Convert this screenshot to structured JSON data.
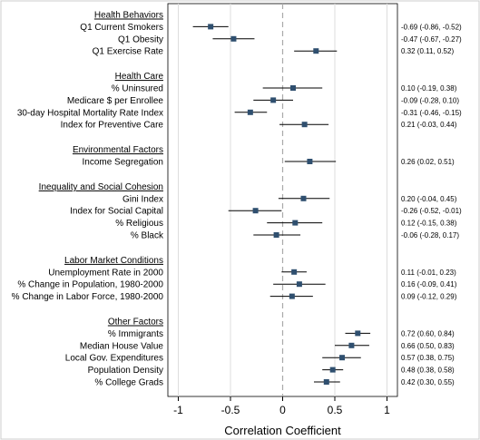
{
  "chart_data": {
    "type": "forest",
    "xlabel": "Correlation Coefficient",
    "xlim": [
      -1.1,
      1.1
    ],
    "xticks": [
      "-1",
      "-0.5",
      "0",
      "0.5",
      "1"
    ],
    "xtick_values": [
      -1,
      -0.5,
      0,
      0.5,
      1
    ],
    "reference_line": 0,
    "grid": "vertical",
    "colors": {
      "point": "#2f4f6f",
      "whisker": "#000000",
      "reference": "#aaaaaa",
      "grid": "#dddddd"
    },
    "groups": [
      {
        "title": "Health Behaviors",
        "rows": [
          {
            "label": "Q1 Current Smokers",
            "estimate": -0.69,
            "lower": -0.86,
            "upper": -0.52,
            "ci_text": "-0.69 (-0.86, -0.52)"
          },
          {
            "label": "Q1 Obesity",
            "estimate": -0.47,
            "lower": -0.67,
            "upper": -0.27,
            "ci_text": "-0.47 (-0.67, -0.27)"
          },
          {
            "label": "Q1 Exercise Rate",
            "estimate": 0.32,
            "lower": 0.11,
            "upper": 0.52,
            "ci_text": "0.32 (0.11, 0.52)"
          }
        ]
      },
      {
        "title": "Health Care",
        "rows": [
          {
            "label": "% Uninsured",
            "estimate": 0.1,
            "lower": -0.19,
            "upper": 0.38,
            "ci_text": "0.10 (-0.19, 0.38)"
          },
          {
            "label": "Medicare $ per Enrollee",
            "estimate": -0.09,
            "lower": -0.28,
            "upper": 0.1,
            "ci_text": "-0.09 (-0.28, 0.10)"
          },
          {
            "label": "30-day Hospital Mortality Rate Index",
            "estimate": -0.31,
            "lower": -0.46,
            "upper": -0.15,
            "ci_text": "-0.31 (-0.46, -0.15)"
          },
          {
            "label": "Index for Preventive Care",
            "estimate": 0.21,
            "lower": -0.03,
            "upper": 0.44,
            "ci_text": "0.21 (-0.03, 0.44)"
          }
        ]
      },
      {
        "title": "Environmental Factors",
        "rows": [
          {
            "label": "Income Segregation",
            "estimate": 0.26,
            "lower": 0.02,
            "upper": 0.51,
            "ci_text": "0.26 (0.02, 0.51)"
          }
        ]
      },
      {
        "title": "Inequality and Social Cohesion",
        "rows": [
          {
            "label": "Gini Index",
            "estimate": 0.2,
            "lower": -0.04,
            "upper": 0.45,
            "ci_text": "0.20 (-0.04, 0.45)"
          },
          {
            "label": "Index for Social Capital",
            "estimate": -0.26,
            "lower": -0.52,
            "upper": -0.01,
            "ci_text": "-0.26 (-0.52, -0.01)"
          },
          {
            "label": "% Religious",
            "estimate": 0.12,
            "lower": -0.15,
            "upper": 0.38,
            "ci_text": "0.12 (-0.15, 0.38)"
          },
          {
            "label": "% Black",
            "estimate": -0.06,
            "lower": -0.28,
            "upper": 0.17,
            "ci_text": "-0.06 (-0.28, 0.17)"
          }
        ]
      },
      {
        "title": "Labor Market Conditions",
        "rows": [
          {
            "label": "Unemployment Rate in 2000",
            "estimate": 0.11,
            "lower": -0.01,
            "upper": 0.23,
            "ci_text": "0.11 (-0.01, 0.23)"
          },
          {
            "label": "% Change in Population, 1980-2000",
            "estimate": 0.16,
            "lower": -0.09,
            "upper": 0.41,
            "ci_text": "0.16 (-0.09, 0.41)"
          },
          {
            "label": "% Change in Labor Force, 1980-2000",
            "estimate": 0.09,
            "lower": -0.12,
            "upper": 0.29,
            "ci_text": "0.09 (-0.12, 0.29)"
          }
        ]
      },
      {
        "title": "Other Factors",
        "rows": [
          {
            "label": "% Immigrants",
            "estimate": 0.72,
            "lower": 0.6,
            "upper": 0.84,
            "ci_text": "0.72 (0.60, 0.84)"
          },
          {
            "label": "Median House Value",
            "estimate": 0.66,
            "lower": 0.5,
            "upper": 0.83,
            "ci_text": "0.66 (0.50, 0.83)"
          },
          {
            "label": "Local Gov. Expenditures",
            "estimate": 0.57,
            "lower": 0.38,
            "upper": 0.75,
            "ci_text": "0.57 (0.38, 0.75)"
          },
          {
            "label": "Population Density",
            "estimate": 0.48,
            "lower": 0.38,
            "upper": 0.58,
            "ci_text": "0.48 (0.38, 0.58)"
          },
          {
            "label": "% College Grads",
            "estimate": 0.42,
            "lower": 0.3,
            "upper": 0.55,
            "ci_text": "0.42 (0.30, 0.55)"
          }
        ]
      }
    ]
  }
}
